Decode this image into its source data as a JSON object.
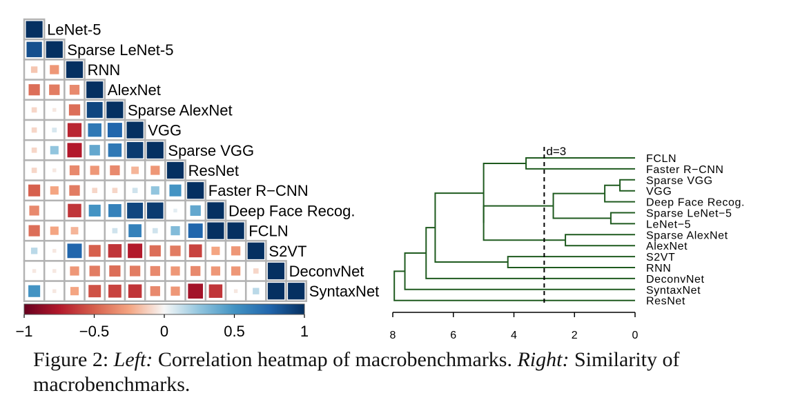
{
  "chart_data": [
    {
      "type": "heatmap",
      "labels": [
        "LeNet-5",
        "Sparse LeNet-5",
        "RNN",
        "AlexNet",
        "Sparse AlexNet",
        "VGG",
        "Sparse VGG",
        "ResNet",
        "Faster R−CNN",
        "Deep Face Recog.",
        "FCLN",
        "S2VT",
        "DeconvNet",
        "SyntaxNet"
      ],
      "values": [
        [
          1.0
        ],
        [
          0.85,
          1.0
        ],
        [
          -0.15,
          -0.3,
          1.0
        ],
        [
          -0.45,
          -0.4,
          -0.35,
          1.0
        ],
        [
          -0.1,
          -0.05,
          -0.45,
          0.9,
          1.0
        ],
        [
          -0.1,
          0.08,
          -0.7,
          0.65,
          0.75,
          1.0
        ],
        [
          -0.1,
          0.25,
          -0.75,
          0.4,
          0.65,
          0.95,
          1.0
        ],
        [
          -0.1,
          -0.05,
          -0.35,
          -0.3,
          -0.35,
          -0.2,
          -0.3,
          1.0
        ],
        [
          -0.5,
          -0.25,
          -0.4,
          -0.1,
          -0.1,
          0.1,
          0.25,
          0.5,
          1.0
        ],
        [
          -0.35,
          0.0,
          -0.65,
          0.5,
          0.6,
          0.9,
          0.95,
          0.05,
          0.4,
          1.0
        ],
        [
          -0.45,
          -0.25,
          -0.2,
          0.0,
          0.1,
          0.6,
          0.1,
          0.3,
          0.75,
          1.0,
          1.0
        ],
        [
          0.15,
          -0.05,
          0.75,
          -0.5,
          -0.65,
          -0.75,
          -0.45,
          -0.4,
          -0.6,
          -0.25,
          -0.3,
          1.0
        ],
        [
          -0.05,
          -0.05,
          -0.3,
          -0.4,
          -0.45,
          -0.4,
          -0.35,
          -0.3,
          -0.35,
          -0.3,
          -0.3,
          -0.1,
          1.0
        ],
        [
          0.5,
          -0.05,
          -0.25,
          -0.55,
          -0.6,
          -0.65,
          -0.35,
          -0.3,
          -0.8,
          -0.65,
          -0.05,
          0.15,
          1.0,
          1.0
        ]
      ],
      "colorbar": {
        "min": -1,
        "max": 1,
        "ticks": [
          "−1",
          "−0.5",
          "0",
          "0.5",
          "1"
        ]
      },
      "colors": {
        "negative": "#67001f",
        "neutral": "#f7f7f7",
        "positive": "#053061"
      }
    },
    {
      "type": "dendrogram",
      "leaves": [
        "FCLN",
        "Faster R−CNN",
        "Sparse VGG",
        "VGG",
        "Deep Face Recog.",
        "Sparse LeNet−5",
        "LeNet−5",
        "Sparse AlexNet",
        "AlexNet",
        "S2VT",
        "RNN",
        "DeconvNet",
        "SyntaxNet",
        "ResNet"
      ],
      "merges": [
        {
          "a": [
            2
          ],
          "b": [
            3
          ],
          "height": 0.5
        },
        {
          "a": [
            5
          ],
          "b": [
            6
          ],
          "height": 0.8
        },
        {
          "a": [
            2,
            3
          ],
          "b": [
            4
          ],
          "height": 1.0
        },
        {
          "a": [
            7
          ],
          "b": [
            8
          ],
          "height": 2.3
        },
        {
          "a": [
            2,
            3,
            4
          ],
          "b": [
            5,
            6
          ],
          "height": 2.7
        },
        {
          "a": [
            0
          ],
          "b": [
            1
          ],
          "height": 3.6
        },
        {
          "a": [
            9
          ],
          "b": [
            10
          ],
          "height": 4.2
        },
        {
          "a": [
            2,
            3,
            4,
            5,
            6
          ],
          "b": [
            7,
            8
          ],
          "height": 5.0
        },
        {
          "a": [
            0,
            1
          ],
          "b": [
            2,
            3,
            4,
            5,
            6,
            7,
            8
          ],
          "height": 5.0
        },
        {
          "a": [
            0,
            1,
            2,
            3,
            4,
            5,
            6,
            7,
            8
          ],
          "b": [
            9,
            10
          ],
          "height": 6.6
        },
        {
          "a": [
            0,
            1,
            2,
            3,
            4,
            5,
            6,
            7,
            8,
            9,
            10
          ],
          "b": [
            11
          ],
          "height": 6.9
        },
        {
          "a": [
            0,
            1,
            2,
            3,
            4,
            5,
            6,
            7,
            8,
            9,
            10,
            11
          ],
          "b": [
            12
          ],
          "height": 7.6
        },
        {
          "a": [
            0,
            1,
            2,
            3,
            4,
            5,
            6,
            7,
            8,
            9,
            10,
            11,
            12
          ],
          "b": [
            13
          ],
          "height": 7.95
        }
      ],
      "cutoff": {
        "value": 3,
        "label": "d=3"
      },
      "xlim": [
        8,
        0
      ],
      "xticks": [
        "8",
        "6",
        "4",
        "2",
        "0"
      ],
      "line_color": "#1e5a1e"
    }
  ],
  "caption": {
    "figure_label": "Figure 2:",
    "left_label": "Left:",
    "left_text": "Correlation heatmap of macrobenchmarks.",
    "right_label": "Right:",
    "right_text": "Similarity of macrobenchmarks."
  }
}
